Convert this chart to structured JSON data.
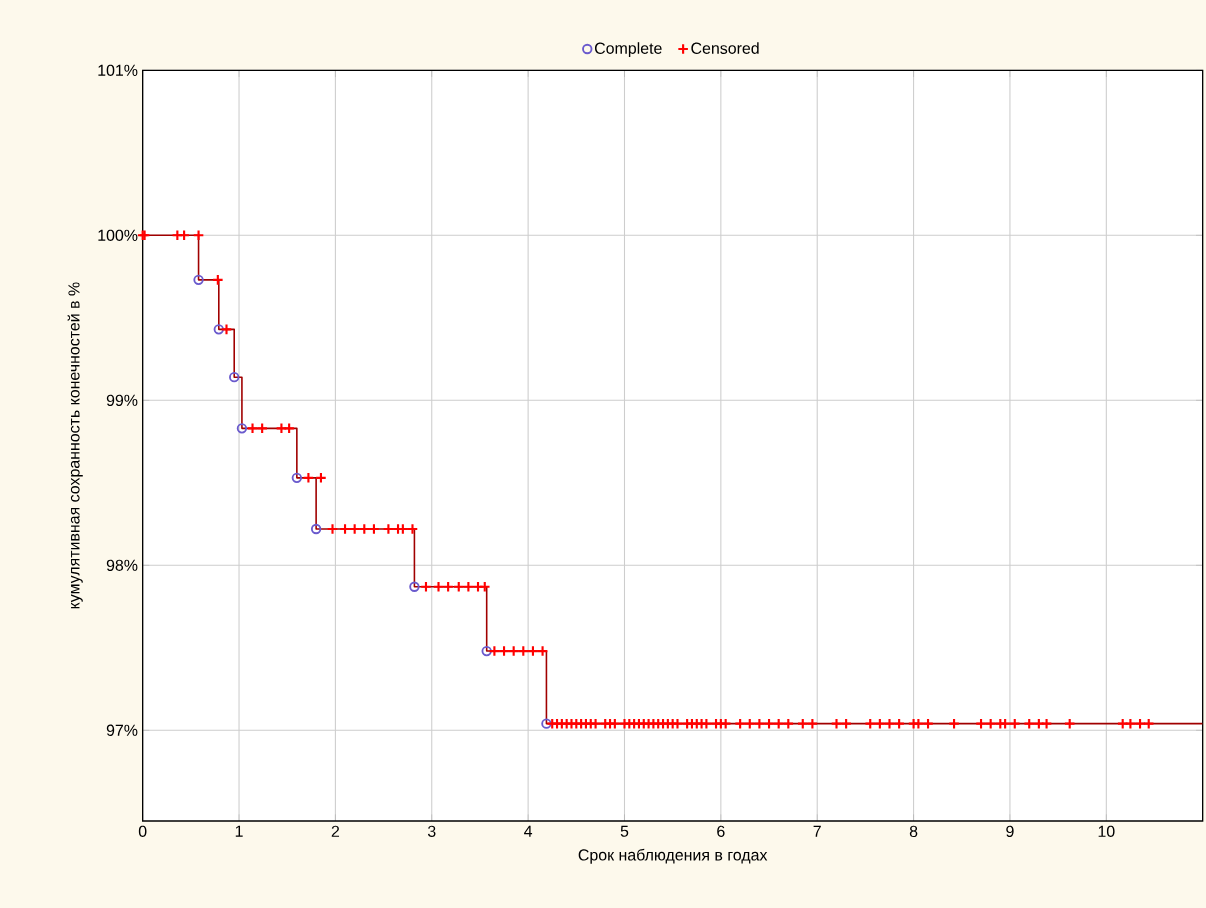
{
  "chart_data": {
    "type": "step",
    "xlabel": "Срок наблюдения в годах",
    "ylabel": "кумулятивная сохранность конечностей в %",
    "xlim": [
      0,
      11
    ],
    "ylim": [
      96.45,
      101
    ],
    "xticks": [
      0,
      1,
      2,
      3,
      4,
      5,
      6,
      7,
      8,
      9,
      10
    ],
    "yticks": [
      {
        "value": 97,
        "label": "97%"
      },
      {
        "value": 98,
        "label": "98%"
      },
      {
        "value": 99,
        "label": "99%"
      },
      {
        "value": 100,
        "label": "100%"
      },
      {
        "value": 101,
        "label": "101%"
      }
    ],
    "grid": true,
    "legend": "top",
    "series": [
      {
        "name": "Complete",
        "type": "scatter",
        "marker": "circle",
        "color": "#6a5acd",
        "x": [
          0.58,
          0.79,
          0.95,
          1.03,
          1.6,
          1.8,
          2.82,
          3.57,
          4.19
        ],
        "values": [
          99.73,
          99.43,
          99.14,
          98.83,
          98.53,
          98.22,
          97.87,
          97.48,
          97.04
        ]
      },
      {
        "name": "Censored",
        "type": "scatter",
        "marker": "cross",
        "color": "#ff0000",
        "x": [
          0,
          0.02,
          0.36,
          0.43,
          0.58,
          0.78,
          0.87,
          1.14,
          1.24,
          1.44,
          1.52,
          1.72,
          1.85,
          1.97,
          2.1,
          2.2,
          2.3,
          2.4,
          2.55,
          2.65,
          2.7,
          2.8,
          2.94,
          3.07,
          3.17,
          3.28,
          3.38,
          3.48,
          3.55,
          3.65,
          3.75,
          3.85,
          3.95,
          4.05,
          4.15,
          4.25,
          4.3,
          4.35,
          4.4,
          4.45,
          4.5,
          4.55,
          4.6,
          4.65,
          4.7,
          4.8,
          4.85,
          4.9,
          5.0,
          5.05,
          5.1,
          5.15,
          5.2,
          5.25,
          5.3,
          5.35,
          5.4,
          5.45,
          5.5,
          5.55,
          5.65,
          5.7,
          5.75,
          5.8,
          5.85,
          5.95,
          6.0,
          6.05,
          6.2,
          6.3,
          6.4,
          6.5,
          6.6,
          6.7,
          6.85,
          6.95,
          7.2,
          7.3,
          7.55,
          7.65,
          7.75,
          7.85,
          8.0,
          8.05,
          8.15,
          8.42,
          8.7,
          8.8,
          8.9,
          8.95,
          9.05,
          9.2,
          9.3,
          9.38,
          9.62,
          10.17,
          10.25,
          10.35,
          10.44
        ],
        "values": [
          100,
          100,
          100,
          100,
          100,
          99.73,
          99.43,
          98.83,
          98.83,
          98.83,
          98.83,
          98.53,
          98.53,
          98.22,
          98.22,
          98.22,
          98.22,
          98.22,
          98.22,
          98.22,
          98.22,
          98.22,
          97.87,
          97.87,
          97.87,
          97.87,
          97.87,
          97.87,
          97.87,
          97.48,
          97.48,
          97.48,
          97.48,
          97.48,
          97.48,
          97.04,
          97.04,
          97.04,
          97.04,
          97.04,
          97.04,
          97.04,
          97.04,
          97.04,
          97.04,
          97.04,
          97.04,
          97.04,
          97.04,
          97.04,
          97.04,
          97.04,
          97.04,
          97.04,
          97.04,
          97.04,
          97.04,
          97.04,
          97.04,
          97.04,
          97.04,
          97.04,
          97.04,
          97.04,
          97.04,
          97.04,
          97.04,
          97.04,
          97.04,
          97.04,
          97.04,
          97.04,
          97.04,
          97.04,
          97.04,
          97.04,
          97.04,
          97.04,
          97.04,
          97.04,
          97.04,
          97.04,
          97.04,
          97.04,
          97.04,
          97.04,
          97.04,
          97.04,
          97.04,
          97.04,
          97.04,
          97.04,
          97.04,
          97.04,
          97.04,
          97.04,
          97.04,
          97.04,
          97.04
        ]
      },
      {
        "marker": "none",
        "color": "#a00000",
        "x": [
          0,
          0.58,
          0.79,
          0.95,
          1.03,
          1.6,
          1.8,
          2.82,
          3.57,
          4.19,
          11
        ],
        "values": [
          100,
          99.73,
          99.43,
          99.14,
          98.83,
          98.53,
          98.22,
          97.87,
          97.48,
          97.04,
          97.04
        ]
      }
    ]
  }
}
